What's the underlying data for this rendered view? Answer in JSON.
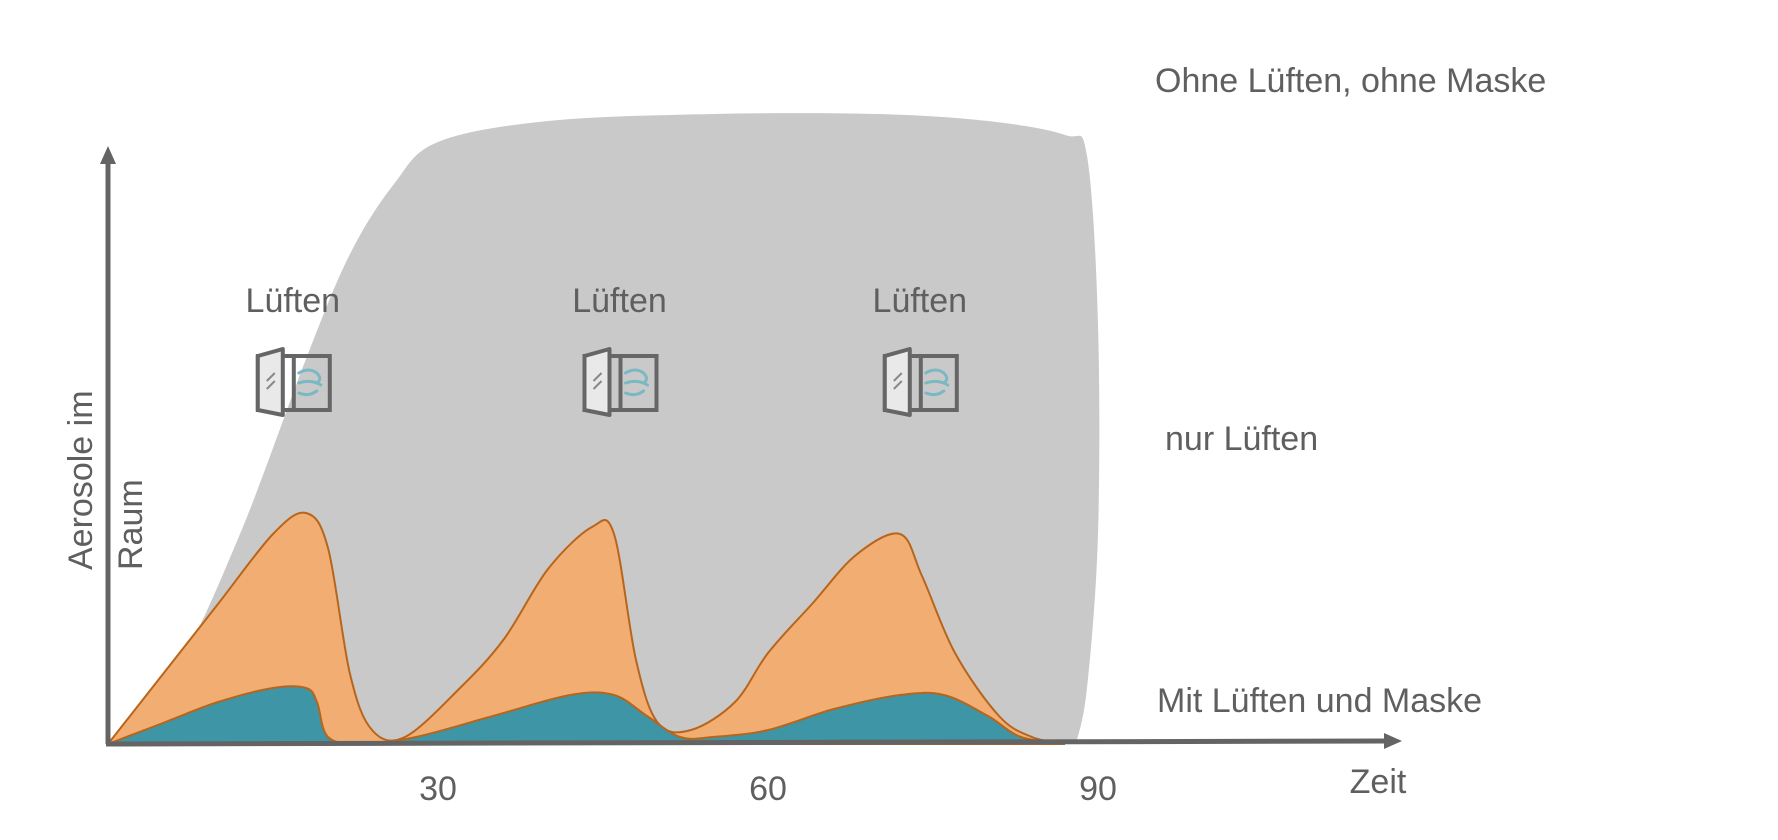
{
  "chart_data": {
    "type": "area",
    "title": "",
    "xlabel": "Zeit",
    "ylabel": "Aerosole im Raum",
    "x_ticks": [
      "30",
      "60",
      "90"
    ],
    "series": [
      {
        "name": "Ohne Lüften, ohne Maske",
        "color": "#c9c9c9",
        "points": [
          [
            0,
            0
          ],
          [
            6,
            10
          ],
          [
            12,
            30
          ],
          [
            18,
            55
          ],
          [
            22,
            70
          ],
          [
            26,
            80
          ],
          [
            30,
            86
          ],
          [
            40,
            89
          ],
          [
            55,
            90
          ],
          [
            70,
            90
          ],
          [
            80,
            89
          ],
          [
            87,
            87
          ],
          [
            89,
            84
          ],
          [
            90,
            60
          ],
          [
            90,
            30
          ],
          [
            89,
            8
          ],
          [
            88,
            0
          ]
        ]
      },
      {
        "name": "nur Lüften",
        "color": "#f2ae72",
        "points": [
          [
            0,
            0
          ],
          [
            5,
            10
          ],
          [
            10,
            20
          ],
          [
            15,
            30
          ],
          [
            18,
            33
          ],
          [
            20,
            28
          ],
          [
            22,
            10
          ],
          [
            24,
            2
          ],
          [
            27,
            1
          ],
          [
            32,
            8
          ],
          [
            36,
            15
          ],
          [
            40,
            25
          ],
          [
            44,
            31
          ],
          [
            46,
            30
          ],
          [
            48,
            12
          ],
          [
            50,
            3
          ],
          [
            53,
            2
          ],
          [
            57,
            6
          ],
          [
            60,
            13
          ],
          [
            64,
            20
          ],
          [
            68,
            27
          ],
          [
            72,
            30
          ],
          [
            74,
            24
          ],
          [
            77,
            13
          ],
          [
            81,
            4
          ],
          [
            84,
            1
          ],
          [
            87,
            0
          ]
        ]
      },
      {
        "name": "Mit Lüften und Maske",
        "color": "#3d95a5",
        "points": [
          [
            0,
            0
          ],
          [
            5,
            3
          ],
          [
            10,
            6
          ],
          [
            15,
            8
          ],
          [
            18,
            8
          ],
          [
            19,
            6
          ],
          [
            20,
            1
          ],
          [
            23,
            0
          ],
          [
            28,
            1
          ],
          [
            35,
            4
          ],
          [
            42,
            7
          ],
          [
            46,
            7
          ],
          [
            49,
            4
          ],
          [
            52,
            1
          ],
          [
            55,
            1
          ],
          [
            60,
            2
          ],
          [
            66,
            5
          ],
          [
            72,
            7
          ],
          [
            76,
            7
          ],
          [
            80,
            4
          ],
          [
            83,
            1
          ],
          [
            87,
            0
          ]
        ]
      }
    ],
    "annotations": [
      "Lüften",
      "Lüften",
      "Lüften"
    ],
    "vent_icon": "open-window-icon"
  }
}
